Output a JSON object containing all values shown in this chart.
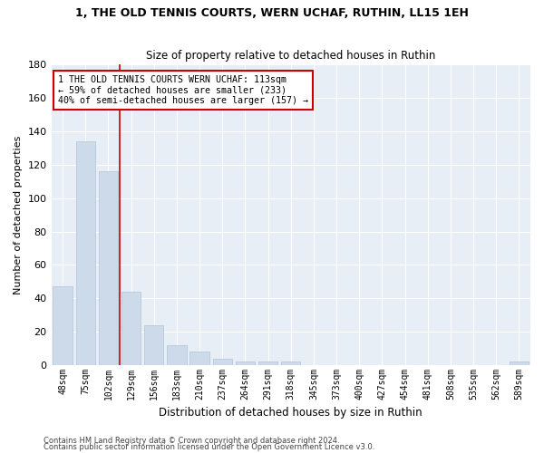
{
  "title": "1, THE OLD TENNIS COURTS, WERN UCHAF, RUTHIN, LL15 1EH",
  "subtitle": "Size of property relative to detached houses in Ruthin",
  "xlabel": "Distribution of detached houses by size in Ruthin",
  "ylabel": "Number of detached properties",
  "bar_color": "#ccdaea",
  "bar_edgecolor": "#aec4d8",
  "background_color": "#e8eef6",
  "annotation_text": "1 THE OLD TENNIS COURTS WERN UCHAF: 113sqm\n← 59% of detached houses are smaller (233)\n40% of semi-detached houses are larger (157) →",
  "vline_x": 2.5,
  "vline_color": "#cc0000",
  "categories": [
    "48sqm",
    "75sqm",
    "102sqm",
    "129sqm",
    "156sqm",
    "183sqm",
    "210sqm",
    "237sqm",
    "264sqm",
    "291sqm",
    "318sqm",
    "345sqm",
    "373sqm",
    "400sqm",
    "427sqm",
    "454sqm",
    "481sqm",
    "508sqm",
    "535sqm",
    "562sqm",
    "589sqm"
  ],
  "values": [
    47,
    134,
    116,
    44,
    24,
    12,
    8,
    4,
    2,
    2,
    2,
    0,
    0,
    0,
    0,
    0,
    0,
    0,
    0,
    0,
    2
  ],
  "ylim": [
    0,
    180
  ],
  "yticks": [
    0,
    20,
    40,
    60,
    80,
    100,
    120,
    140,
    160,
    180
  ],
  "footer1": "Contains HM Land Registry data © Crown copyright and database right 2024.",
  "footer2": "Contains public sector information licensed under the Open Government Licence v3.0."
}
